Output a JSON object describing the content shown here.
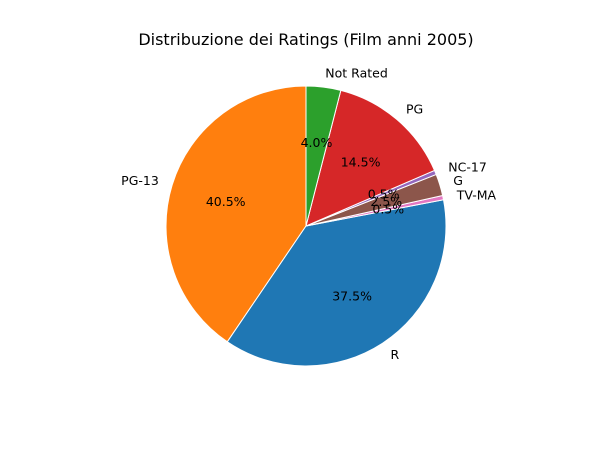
{
  "chart_data": {
    "type": "pie",
    "title": "Distribuzione dei Ratings (Film anni 2005)",
    "start_angle_deg": 90,
    "counterclock": true,
    "slices": [
      {
        "label": "PG-13",
        "value": 40.5,
        "pct_label": "40.5%",
        "color": "#ff7f0e"
      },
      {
        "label": "R",
        "value": 37.5,
        "pct_label": "37.5%",
        "color": "#1f77b4"
      },
      {
        "label": "TV-MA",
        "value": 0.5,
        "pct_label": "0.5%",
        "color": "#e377c2"
      },
      {
        "label": "G",
        "value": 2.5,
        "pct_label": "2.5%",
        "color": "#8c564b"
      },
      {
        "label": "NC-17",
        "value": 0.5,
        "pct_label": "0.5%",
        "color": "#9467bd"
      },
      {
        "label": "PG",
        "value": 14.5,
        "pct_label": "14.5%",
        "color": "#d62728"
      },
      {
        "label": "Not Rated",
        "value": 4.0,
        "pct_label": "4.0%",
        "color": "#2ca02c"
      }
    ]
  }
}
